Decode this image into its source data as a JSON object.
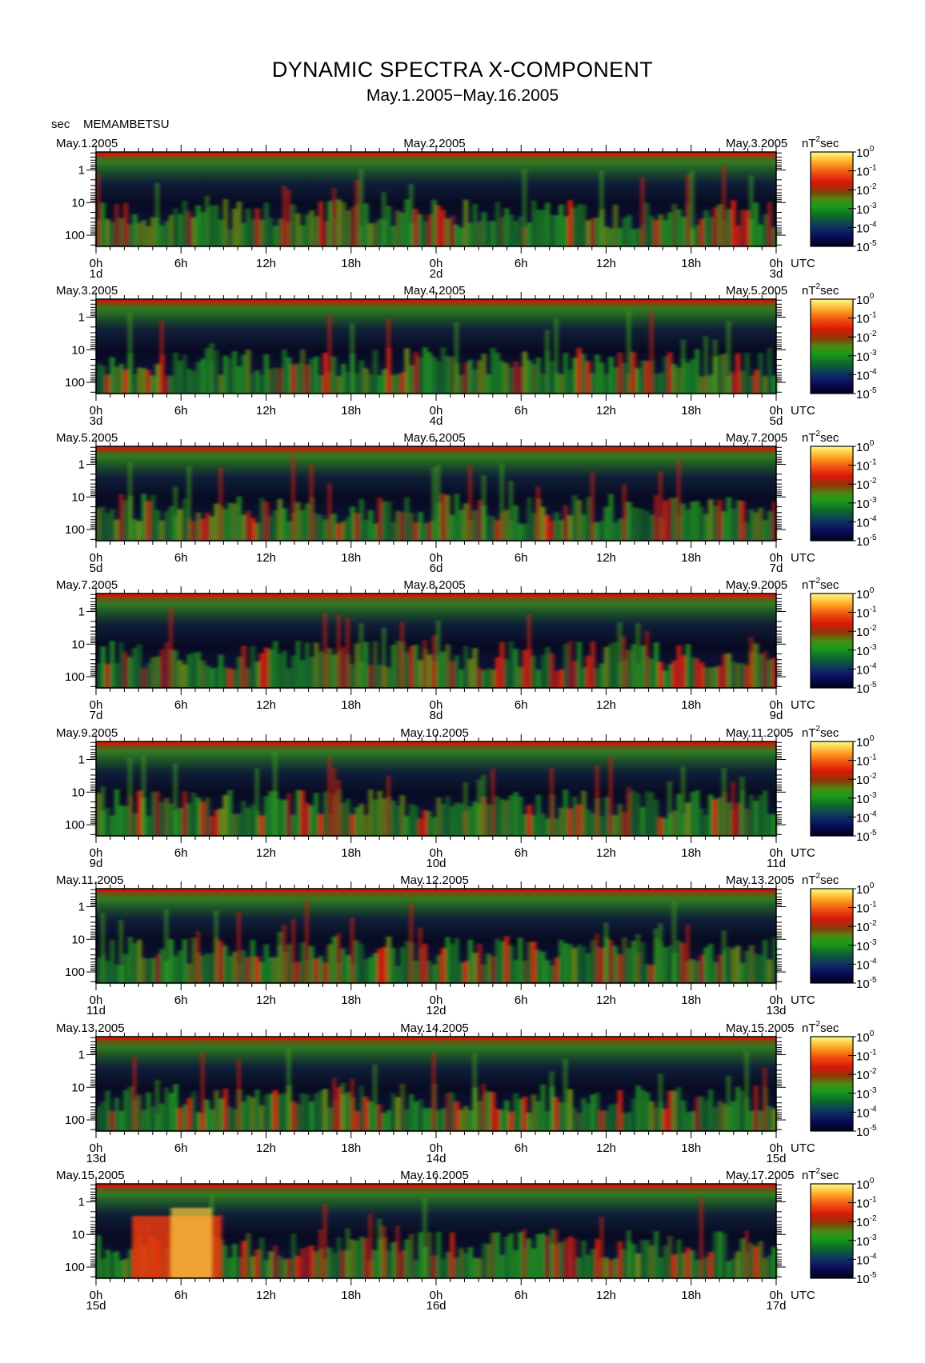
{
  "title": "DYNAMIC SPECTRA X-COMPONENT",
  "subtitle": "May.1.2005−May.16.2005",
  "period_label": "sec",
  "station": "MEMAMBETSU",
  "colorbar_unit": "nT",
  "colorbar_unit_sup": "2",
  "colorbar_unit_tail": "sec",
  "colorbar_ticks": [
    {
      "base": "10",
      "exp": "0"
    },
    {
      "base": "10",
      "exp": "-1"
    },
    {
      "base": "10",
      "exp": "-2"
    },
    {
      "base": "10",
      "exp": "-3"
    },
    {
      "base": "10",
      "exp": "-4"
    },
    {
      "base": "10",
      "exp": "-5"
    }
  ],
  "colors": {
    "low": "#0a0a3a",
    "mid": "#1f8a1f",
    "high": "#e01808",
    "peak": "#ffff60"
  },
  "chart_data": {
    "type": "heatmap",
    "title": "DYNAMIC SPECTRA X-COMPONENT",
    "xlabel": "UTC",
    "ylabel": "sec",
    "y_scale": "log",
    "y_ticks": [
      "1",
      "10",
      "100"
    ],
    "x_ticks": [
      "0h",
      "6h",
      "12h",
      "18h",
      "0h",
      "6h",
      "12h",
      "18h",
      "0h"
    ],
    "colorbar": {
      "label": "nT²sec",
      "range": [
        "10^-5",
        "10^0"
      ],
      "scale": "log"
    },
    "panels": [
      {
        "left_date": "May.1.2005",
        "mid_date": "May.2.2005",
        "right_date": "May.3.2005",
        "day_labels": [
          "1d",
          "2d",
          "3d"
        ]
      },
      {
        "left_date": "May.3.2005",
        "mid_date": "May.4.2005",
        "right_date": "May.5.2005",
        "day_labels": [
          "3d",
          "4d",
          "5d"
        ]
      },
      {
        "left_date": "May.5.2005",
        "mid_date": "May.6.2005",
        "right_date": "May.7.2005",
        "day_labels": [
          "5d",
          "6d",
          "7d"
        ]
      },
      {
        "left_date": "May.7.2005",
        "mid_date": "May.8.2005",
        "right_date": "May.9.2005",
        "day_labels": [
          "7d",
          "8d",
          "9d"
        ]
      },
      {
        "left_date": "May.9.2005",
        "mid_date": "May.10.2005",
        "right_date": "May.11.2005",
        "day_labels": [
          "9d",
          "10d",
          "11d"
        ]
      },
      {
        "left_date": "May.11.2005",
        "mid_date": "May.12.2005",
        "right_date": "May.13.2005",
        "day_labels": [
          "11d",
          "12d",
          "13d"
        ]
      },
      {
        "left_date": "May.13.2005",
        "mid_date": "May.14.2005",
        "right_date": "May.15.2005",
        "day_labels": [
          "13d",
          "14d",
          "15d"
        ]
      },
      {
        "left_date": "May.15.2005",
        "mid_date": "May.16.2005",
        "right_date": "May.17.2005",
        "day_labels": [
          "15d",
          "16d",
          "17d"
        ]
      }
    ]
  }
}
